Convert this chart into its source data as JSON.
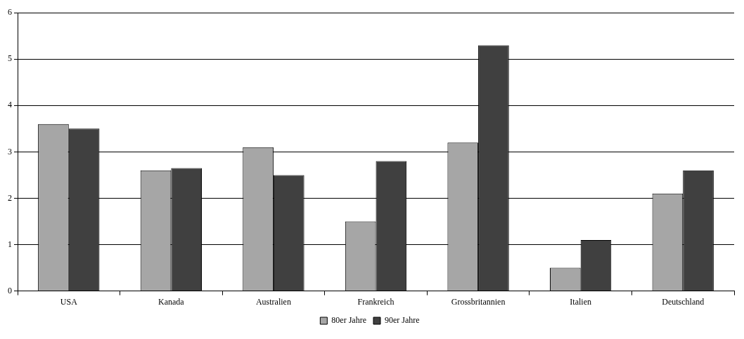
{
  "chart_data": {
    "type": "bar",
    "categories": [
      "USA",
      "Kanada",
      "Australien",
      "Frankreich",
      "Grossbritannien",
      "Italien",
      "Deutschland"
    ],
    "series": [
      {
        "name": "80er Jahre",
        "color": "#a6a6a6",
        "values": [
          3.6,
          2.6,
          3.1,
          1.5,
          3.2,
          0.5,
          2.1
        ]
      },
      {
        "name": "90er Jahre",
        "color": "#404040",
        "values": [
          3.5,
          2.65,
          2.5,
          2.8,
          5.3,
          1.1,
          2.6
        ]
      }
    ],
    "ylim": [
      0,
      6
    ],
    "yticks": [
      0,
      1,
      2,
      3,
      4,
      5,
      6
    ],
    "grid": "y",
    "legend": "bottom"
  }
}
